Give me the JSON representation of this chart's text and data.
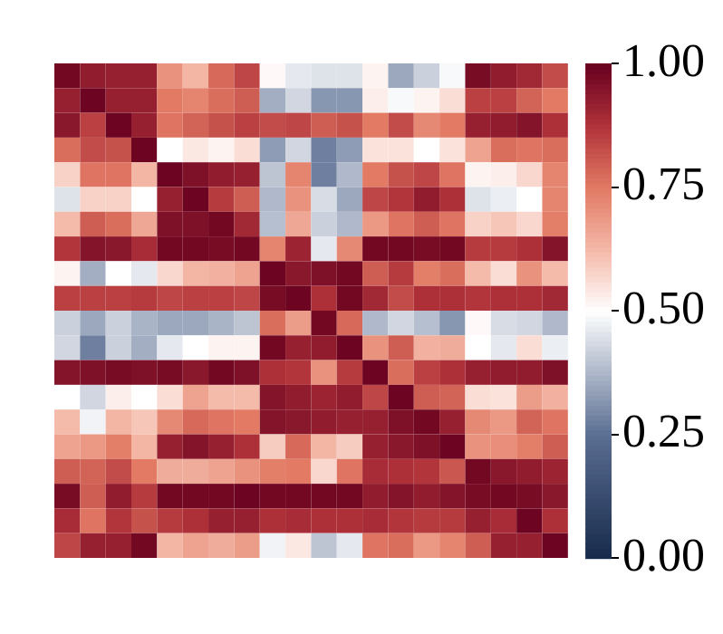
{
  "chart_data": {
    "type": "heatmap",
    "categories": [
      null,
      null,
      null,
      null,
      null,
      null,
      null,
      null,
      null,
      null,
      null,
      null,
      null,
      null,
      null,
      null,
      null,
      null,
      null,
      null
    ],
    "y_categories": [
      null,
      null,
      null,
      null,
      null,
      null,
      null,
      null,
      null,
      null,
      null,
      null,
      null,
      null,
      null,
      null,
      null,
      null,
      null,
      null
    ],
    "cells": [
      [
        0.98,
        0.93,
        0.92,
        0.92,
        0.7,
        0.63,
        0.78,
        0.84,
        0.51,
        0.46,
        0.45,
        0.45,
        0.52,
        0.35,
        0.42,
        0.49,
        0.97,
        0.93,
        0.9,
        0.83
      ],
      [
        0.92,
        0.99,
        0.92,
        0.92,
        0.75,
        0.73,
        0.77,
        0.8,
        0.36,
        0.43,
        0.32,
        0.32,
        0.53,
        0.49,
        0.52,
        0.56,
        0.85,
        0.85,
        0.79,
        0.75
      ],
      [
        0.94,
        0.85,
        0.99,
        0.92,
        0.76,
        0.79,
        0.82,
        0.85,
        0.83,
        0.84,
        0.8,
        0.82,
        0.75,
        0.83,
        0.72,
        0.75,
        0.92,
        0.93,
        0.95,
        0.88
      ],
      [
        0.77,
        0.83,
        0.82,
        0.99,
        0.5,
        0.54,
        0.52,
        0.56,
        0.33,
        0.43,
        0.28,
        0.33,
        0.55,
        0.55,
        0.5,
        0.55,
        0.67,
        0.77,
        0.76,
        0.77
      ],
      [
        0.58,
        0.76,
        0.76,
        0.63,
        0.99,
        0.96,
        0.93,
        0.92,
        0.4,
        0.73,
        0.28,
        0.38,
        0.75,
        0.82,
        0.84,
        0.76,
        0.52,
        0.53,
        0.57,
        0.73
      ],
      [
        0.45,
        0.58,
        0.58,
        0.5,
        0.92,
        0.99,
        0.86,
        0.8,
        0.38,
        0.7,
        0.44,
        0.35,
        0.84,
        0.87,
        0.93,
        0.88,
        0.45,
        0.47,
        0.5,
        0.73
      ],
      [
        0.62,
        0.8,
        0.77,
        0.66,
        0.96,
        0.96,
        0.98,
        0.9,
        0.39,
        0.66,
        0.42,
        0.38,
        0.69,
        0.76,
        0.8,
        0.76,
        0.58,
        0.6,
        0.57,
        0.74
      ],
      [
        0.87,
        0.95,
        0.94,
        0.89,
        0.98,
        0.98,
        0.97,
        0.98,
        0.73,
        0.91,
        0.46,
        0.72,
        0.98,
        0.98,
        0.97,
        0.98,
        0.86,
        0.86,
        0.88,
        0.95
      ],
      [
        0.52,
        0.36,
        0.5,
        0.46,
        0.57,
        0.63,
        0.64,
        0.67,
        0.99,
        0.94,
        0.96,
        0.98,
        0.8,
        0.86,
        0.74,
        0.77,
        0.62,
        0.56,
        0.7,
        0.62
      ],
      [
        0.85,
        0.85,
        0.85,
        0.86,
        0.84,
        0.85,
        0.85,
        0.84,
        0.97,
        0.99,
        0.88,
        0.98,
        0.9,
        0.83,
        0.88,
        0.88,
        0.87,
        0.88,
        0.88,
        0.9
      ],
      [
        0.42,
        0.35,
        0.42,
        0.37,
        0.35,
        0.35,
        0.37,
        0.4,
        0.77,
        0.68,
        0.98,
        0.78,
        0.38,
        0.43,
        0.39,
        0.32,
        0.51,
        0.44,
        0.43,
        0.38
      ],
      [
        0.43,
        0.28,
        0.42,
        0.36,
        0.46,
        0.5,
        0.52,
        0.52,
        0.98,
        0.92,
        0.93,
        0.99,
        0.7,
        0.8,
        0.64,
        0.65,
        0.5,
        0.46,
        0.56,
        0.47
      ],
      [
        0.95,
        0.96,
        0.97,
        0.96,
        0.97,
        0.94,
        0.98,
        0.96,
        0.88,
        0.87,
        0.7,
        0.86,
        0.99,
        0.77,
        0.85,
        0.88,
        0.92,
        0.93,
        0.93,
        0.96
      ],
      [
        0.5,
        0.43,
        0.53,
        0.5,
        0.56,
        0.67,
        0.62,
        0.62,
        0.95,
        0.93,
        0.91,
        0.93,
        0.84,
        0.99,
        0.8,
        0.79,
        0.56,
        0.55,
        0.68,
        0.64
      ],
      [
        0.62,
        0.48,
        0.63,
        0.6,
        0.72,
        0.78,
        0.76,
        0.75,
        0.95,
        0.94,
        0.93,
        0.92,
        0.92,
        0.96,
        0.98,
        0.92,
        0.72,
        0.69,
        0.79,
        0.76
      ],
      [
        0.67,
        0.69,
        0.74,
        0.63,
        0.92,
        0.95,
        0.92,
        0.88,
        0.59,
        0.78,
        0.63,
        0.59,
        0.92,
        0.94,
        0.96,
        0.99,
        0.7,
        0.71,
        0.74,
        0.8
      ],
      [
        0.8,
        0.79,
        0.83,
        0.75,
        0.65,
        0.65,
        0.67,
        0.7,
        0.74,
        0.75,
        0.57,
        0.76,
        0.89,
        0.88,
        0.87,
        0.81,
        0.98,
        0.94,
        0.93,
        0.91
      ],
      [
        0.97,
        0.8,
        0.93,
        0.86,
        0.98,
        0.98,
        0.98,
        0.99,
        0.98,
        0.98,
        0.98,
        0.98,
        0.93,
        0.95,
        0.93,
        0.95,
        0.97,
        0.98,
        0.97,
        0.94
      ],
      [
        0.89,
        0.76,
        0.87,
        0.82,
        0.86,
        0.88,
        0.92,
        0.92,
        0.88,
        0.89,
        0.88,
        0.88,
        0.89,
        0.87,
        0.86,
        0.86,
        0.92,
        0.89,
        0.99,
        0.88
      ],
      [
        0.84,
        0.92,
        0.92,
        0.98,
        0.63,
        0.67,
        0.65,
        0.68,
        0.48,
        0.54,
        0.4,
        0.46,
        0.76,
        0.77,
        0.69,
        0.73,
        0.8,
        0.92,
        0.92,
        0.99
      ]
    ],
    "clim": [
      0,
      1
    ],
    "cticks": [
      {
        "value": 0,
        "label": "0.00"
      },
      {
        "value": 0.25,
        "label": "0.25"
      },
      {
        "value": 0.5,
        "label": "0.50"
      },
      {
        "value": 0.75,
        "label": "0.75"
      },
      {
        "value": 1,
        "label": "1.00"
      }
    ],
    "tick_labels": false
  }
}
